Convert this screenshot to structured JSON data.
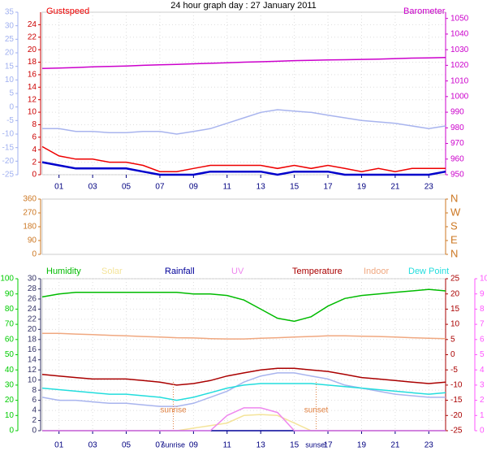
{
  "chart_data": [
    {
      "type": "line",
      "title": "24 hour graph day : 27 January 2011",
      "xlim": [
        0,
        24
      ],
      "xticks": [
        {
          "value": 1,
          "label": "01"
        },
        {
          "value": 3,
          "label": "03"
        },
        {
          "value": 5,
          "label": "05"
        },
        {
          "value": 7,
          "label": "07"
        },
        {
          "value": 9,
          "label": "09"
        },
        11,
        13,
        15,
        17,
        19,
        21,
        23
      ],
      "x": [
        0,
        1,
        2,
        3,
        4,
        5,
        6,
        7,
        8,
        9,
        10,
        11,
        12,
        13,
        14,
        15,
        16,
        17,
        18,
        19,
        20,
        21,
        22,
        23,
        24
      ],
      "axes": [
        {
          "color": "#a0b0f0",
          "ylim": [
            -25,
            35
          ],
          "yticks": [
            35,
            30,
            25,
            20,
            15,
            10,
            5,
            0,
            -5,
            -10,
            -15,
            -20,
            -25
          ]
        },
        {
          "color": "#cc0000",
          "ylim": [
            0,
            26
          ],
          "yticks": [
            24,
            22,
            20,
            18,
            16,
            14,
            12,
            10,
            8,
            6,
            4,
            2,
            0
          ]
        },
        {
          "color": "#cc00cc",
          "ylim": [
            950,
            1054
          ],
          "yticks": [
            1050,
            1040,
            1030,
            1020,
            1010,
            1000,
            990,
            980,
            970,
            960,
            950
          ]
        }
      ],
      "grid": true,
      "series": [
        {
          "color": "#a8b4ee",
          "axis": 0,
          "values": [
            -8,
            -8,
            -9,
            -9,
            -9.5,
            -9.5,
            -9,
            -9,
            -10,
            -9,
            -8,
            -6,
            -4,
            -2,
            -1,
            -1.5,
            -2,
            -3,
            -4,
            -5,
            -5.5,
            -6,
            -7,
            -8,
            -7
          ]
        },
        {
          "name": "Gustspeed",
          "color": "#ee0000",
          "axis": 1,
          "values": [
            4.5,
            3,
            2.5,
            2.5,
            2,
            2,
            1.5,
            0.5,
            0.5,
            1,
            1.5,
            1.5,
            1.5,
            1.5,
            1,
            1.5,
            1,
            1.5,
            1,
            0.5,
            1,
            0.5,
            1,
            1,
            1
          ]
        },
        {
          "color": "#0000cc",
          "axis": 1,
          "values": [
            2,
            1.5,
            1,
            1,
            1,
            1,
            0.5,
            0,
            0,
            0,
            0.5,
            0.5,
            0.5,
            0.5,
            0,
            0.5,
            0.5,
            0.5,
            0,
            0,
            0,
            0,
            0,
            0,
            0.5
          ]
        },
        {
          "name": "Barometer",
          "color": "#cc00cc",
          "axis": 2,
          "values": [
            1018,
            1018.3,
            1018.6,
            1019,
            1019.3,
            1019.6,
            1020,
            1020.3,
            1020.6,
            1021,
            1021.3,
            1021.6,
            1022,
            1022.3,
            1022.6,
            1023,
            1023.2,
            1023.4,
            1023.6,
            1023.8,
            1024,
            1024.3,
            1024.6,
            1024.8,
            1025
          ]
        }
      ]
    },
    {
      "type": "line",
      "xlim": [
        0,
        24
      ],
      "axes": [
        {
          "color": "#cc7722",
          "ylim": [
            0,
            360
          ],
          "yticks": [
            360,
            270,
            180,
            90,
            0
          ]
        },
        {
          "color": "#cc7722",
          "ylim": [
            0,
            360
          ],
          "yticks": [
            {
              "value": 360,
              "label": "N"
            },
            {
              "value": 270,
              "label": "W"
            },
            {
              "value": 180,
              "label": "S"
            },
            {
              "value": 90,
              "label": "E"
            },
            {
              "value": 0,
              "label": "N"
            }
          ]
        }
      ],
      "series": []
    },
    {
      "type": "line",
      "xlim": [
        0,
        24
      ],
      "xticks": [
        {
          "value": 1,
          "label": "01"
        },
        {
          "value": 3,
          "label": "03"
        },
        {
          "value": 5,
          "label": "05"
        },
        {
          "value": 7,
          "label": "07"
        },
        {
          "value": 9,
          "label": "09"
        },
        11,
        13,
        15,
        17,
        19,
        21,
        23
      ],
      "x": [
        0,
        1,
        2,
        3,
        4,
        5,
        6,
        7,
        8,
        9,
        10,
        11,
        12,
        13,
        14,
        15,
        16,
        17,
        18,
        19,
        20,
        21,
        22,
        23,
        24
      ],
      "axes": [
        {
          "color": "#00cc00",
          "ylim": [
            0,
            100
          ],
          "yticks": [
            100,
            90,
            80,
            70,
            60,
            50,
            40,
            30,
            20,
            10,
            0
          ]
        },
        {
          "color": "#333366",
          "ylim": [
            0,
            30
          ],
          "yticks": [
            30,
            28,
            26,
            24,
            22,
            20,
            18,
            16,
            14,
            12,
            10,
            8,
            6,
            4,
            2,
            0
          ]
        },
        {
          "color": "#aa0000",
          "ylim": [
            -25,
            25
          ],
          "yticks": [
            25,
            20,
            15,
            10,
            5,
            0,
            -5,
            -10,
            -15,
            -20,
            -25
          ]
        },
        {
          "color": "#ff55ff",
          "ylim": [
            0,
            10
          ],
          "yticks": [
            10,
            9,
            8,
            7,
            6,
            5,
            4,
            3,
            2,
            1,
            0
          ]
        }
      ],
      "grid": true,
      "markers": [
        {
          "label": "sunrise",
          "x": 7.8
        },
        {
          "label": "sunset",
          "x": 16.3
        }
      ],
      "series": [
        {
          "name": "Humidity",
          "color": "#00bb00",
          "axis": 0,
          "values": [
            88,
            90,
            91,
            91,
            91,
            91,
            91,
            91,
            91,
            90,
            90,
            89,
            86,
            80,
            74,
            72,
            75,
            82,
            87,
            89,
            90,
            91,
            92,
            93,
            92
          ]
        },
        {
          "name": "Solar",
          "color": "#f4e49a",
          "axis": 1,
          "values": [
            0,
            0,
            0,
            0,
            0,
            0,
            0,
            0,
            0,
            0.5,
            1,
            1.5,
            3,
            3.2,
            3,
            1.5,
            0,
            0,
            0,
            0,
            0,
            0,
            0,
            0,
            0
          ]
        },
        {
          "name": "Rainfall",
          "color": "#000099",
          "axis": 1,
          "values": [
            0,
            0,
            0,
            0,
            0,
            0,
            0,
            0,
            0,
            0,
            0,
            0,
            0,
            0,
            0,
            0,
            0,
            0,
            0,
            0,
            0,
            0,
            0,
            0,
            0
          ]
        },
        {
          "name": "UV",
          "color": "#ee88ee",
          "axis": 3,
          "values": [
            0,
            0,
            0,
            0,
            0,
            0,
            0,
            0,
            0,
            0,
            0,
            1,
            1.5,
            1.5,
            1.2,
            0,
            0,
            0,
            0,
            0,
            0,
            0,
            0,
            0,
            0
          ]
        },
        {
          "color": "#a8b4ee",
          "axis": 2,
          "values": [
            -14,
            -15,
            -15,
            -15.5,
            -16,
            -16,
            -16.5,
            -17,
            -17,
            -16,
            -14,
            -12,
            -9,
            -7,
            -6,
            -6,
            -7,
            -8,
            -10,
            -11,
            -12,
            -13,
            -13.5,
            -14,
            -14
          ]
        },
        {
          "name": "Temperature",
          "color": "#aa0000",
          "axis": 2,
          "values": [
            -6.5,
            -7,
            -7.5,
            -8,
            -8,
            -8,
            -8.5,
            -9,
            -10,
            -9.5,
            -8.5,
            -7,
            -6,
            -5,
            -4.5,
            -4.5,
            -5,
            -5.5,
            -6.5,
            -7.5,
            -8,
            -8.5,
            -9,
            -9.5,
            -9
          ]
        },
        {
          "name": "Indoor",
          "color": "#f0a880",
          "axis": 2,
          "values": [
            7,
            7,
            6.8,
            6.6,
            6.4,
            6.2,
            6,
            5.8,
            5.6,
            5.5,
            5.3,
            5.2,
            5.2,
            5.4,
            5.6,
            5.8,
            6,
            6.2,
            6.2,
            6.1,
            6,
            5.8,
            5.6,
            5.4,
            5.3
          ]
        },
        {
          "name": "Dew Point",
          "color": "#22dddd",
          "axis": 2,
          "values": [
            -11,
            -11.5,
            -12,
            -12.5,
            -13,
            -13,
            -13.5,
            -14,
            -15,
            -14,
            -12.5,
            -11,
            -10,
            -9.5,
            -9.5,
            -9.5,
            -9.5,
            -10,
            -10.5,
            -11,
            -11.5,
            -12,
            -12.5,
            -13,
            -12.5
          ]
        }
      ]
    }
  ]
}
